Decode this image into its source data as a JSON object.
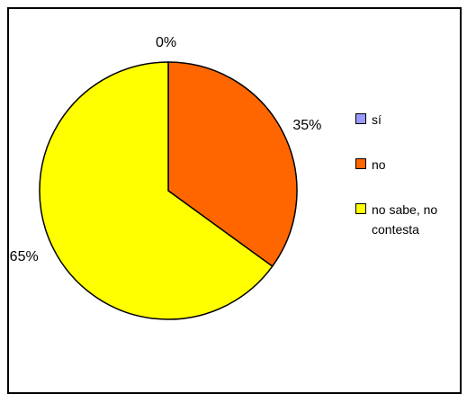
{
  "chart_data": {
    "type": "pie",
    "categories": [
      "sí",
      "no",
      "no sabe, no contesta"
    ],
    "values": [
      0,
      35,
      65
    ],
    "data_labels": [
      "0%",
      "35%",
      "65%"
    ],
    "colors": [
      "#9999ff",
      "#ff6600",
      "#ffff00"
    ],
    "legend_placement": "right",
    "title": ""
  }
}
